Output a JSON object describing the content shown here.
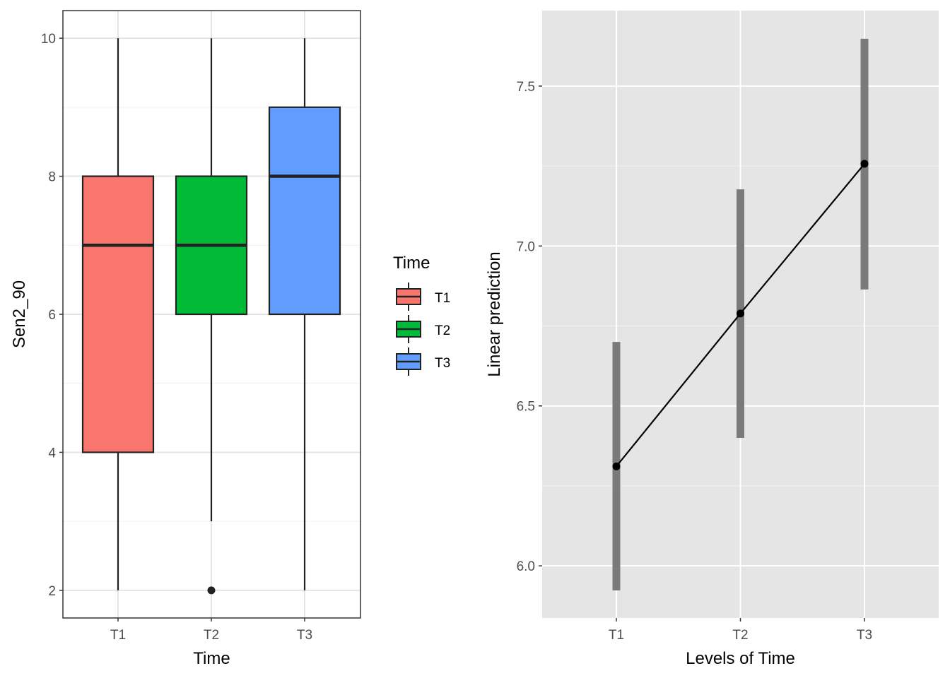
{
  "chart_data": [
    {
      "type": "boxplot",
      "xlabel": "Time",
      "ylabel": "Sen2_90",
      "ylim": [
        1.6,
        10.4
      ],
      "yticks": [
        2,
        4,
        6,
        8,
        10
      ],
      "grid": true,
      "categories": [
        "T1",
        "T2",
        "T3"
      ],
      "boxes": [
        {
          "category": "T1",
          "min": 2,
          "q1": 4,
          "median": 7,
          "q3": 8,
          "max": 10,
          "outliers": [],
          "color": "#F8766D"
        },
        {
          "category": "T2",
          "min": 3,
          "q1": 6,
          "median": 7,
          "q3": 8,
          "max": 10,
          "outliers": [
            2
          ],
          "color": "#00BA38"
        },
        {
          "category": "T3",
          "min": 2,
          "q1": 6,
          "median": 8,
          "q3": 9,
          "max": 10,
          "outliers": [],
          "color": "#619CFF"
        }
      ],
      "legend": {
        "title": "Time",
        "placement": "right",
        "entries": [
          "T1",
          "T2",
          "T3"
        ]
      }
    },
    {
      "type": "line",
      "xlabel": "Levels of Time",
      "ylabel": "Linear prediction",
      "ylim": [
        5.837,
        7.736
      ],
      "yticks": [
        "6.0",
        "6.5",
        "7.0",
        "7.5"
      ],
      "grid": true,
      "categories": [
        "T1",
        "T2",
        "T3"
      ],
      "values": [
        6.311,
        6.789,
        7.257
      ],
      "ci_lower": [
        5.923,
        6.4,
        6.864
      ],
      "ci_upper": [
        6.7,
        7.177,
        7.648
      ]
    }
  ]
}
